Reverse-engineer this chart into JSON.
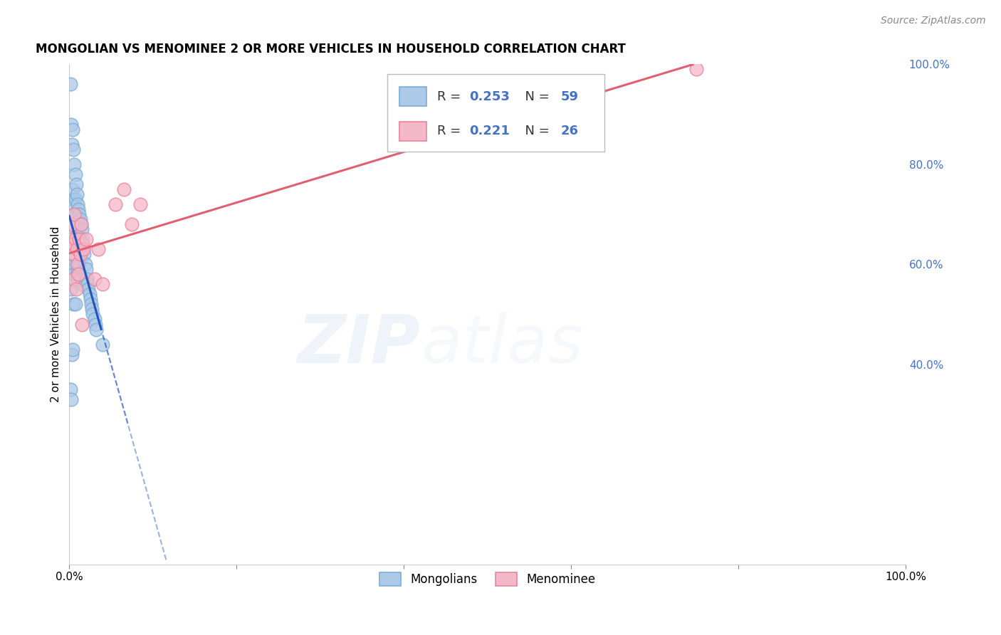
{
  "title": "MONGOLIAN VS MENOMINEE 2 OR MORE VEHICLES IN HOUSEHOLD CORRELATION CHART",
  "source": "Source: ZipAtlas.com",
  "ylabel": "2 or more Vehicles in Household",
  "xlim": [
    0,
    1.0
  ],
  "ylim": [
    0,
    1.0
  ],
  "yticks_right": [
    0.4,
    0.6,
    0.8,
    1.0
  ],
  "ytick_labels_right": [
    "40.0%",
    "60.0%",
    "80.0%",
    "100.0%"
  ],
  "mongolian_color": "#adc9e8",
  "menominee_color": "#f5b8c8",
  "mongolian_edge": "#7aadd4",
  "menominee_edge": "#e8849c",
  "trend_mongolian_color": "#2255bb",
  "trend_menominee_color": "#e06070",
  "legend_R_mongolian": "0.253",
  "legend_N_mongolian": "59",
  "legend_R_menominee": "0.221",
  "legend_N_menominee": "26",
  "mongolian_x": [
    0.001,
    0.001,
    0.002,
    0.002,
    0.002,
    0.003,
    0.003,
    0.003,
    0.004,
    0.004,
    0.004,
    0.004,
    0.005,
    0.005,
    0.005,
    0.005,
    0.006,
    0.006,
    0.006,
    0.007,
    0.007,
    0.007,
    0.007,
    0.008,
    0.008,
    0.008,
    0.009,
    0.009,
    0.009,
    0.01,
    0.01,
    0.01,
    0.011,
    0.011,
    0.012,
    0.012,
    0.013,
    0.013,
    0.014,
    0.014,
    0.015,
    0.015,
    0.016,
    0.017,
    0.018,
    0.019,
    0.02,
    0.021,
    0.022,
    0.023,
    0.024,
    0.025,
    0.026,
    0.027,
    0.028,
    0.03,
    0.031,
    0.032,
    0.04
  ],
  "mongolian_y": [
    0.96,
    0.35,
    0.88,
    0.55,
    0.33,
    0.84,
    0.62,
    0.42,
    0.87,
    0.75,
    0.58,
    0.43,
    0.83,
    0.73,
    0.66,
    0.52,
    0.8,
    0.72,
    0.58,
    0.78,
    0.73,
    0.65,
    0.52,
    0.76,
    0.7,
    0.6,
    0.74,
    0.68,
    0.58,
    0.72,
    0.66,
    0.57,
    0.71,
    0.63,
    0.7,
    0.6,
    0.69,
    0.58,
    0.68,
    0.57,
    0.67,
    0.56,
    0.65,
    0.63,
    0.62,
    0.6,
    0.59,
    0.57,
    0.56,
    0.55,
    0.54,
    0.53,
    0.52,
    0.51,
    0.5,
    0.49,
    0.48,
    0.47,
    0.44
  ],
  "menominee_x": [
    0.002,
    0.003,
    0.004,
    0.005,
    0.006,
    0.006,
    0.007,
    0.008,
    0.009,
    0.01,
    0.011,
    0.012,
    0.013,
    0.014,
    0.015,
    0.016,
    0.017,
    0.02,
    0.03,
    0.035,
    0.04,
    0.055,
    0.065,
    0.075,
    0.085,
    0.75
  ],
  "menominee_y": [
    0.65,
    0.68,
    0.64,
    0.57,
    0.62,
    0.7,
    0.65,
    0.55,
    0.63,
    0.6,
    0.58,
    0.65,
    0.62,
    0.68,
    0.48,
    0.64,
    0.63,
    0.65,
    0.57,
    0.63,
    0.56,
    0.72,
    0.75,
    0.68,
    0.72,
    0.99
  ],
  "watermark_zip": "ZIP",
  "watermark_atlas": "atlas",
  "background_color": "#ffffff",
  "grid_color": "#cccccc",
  "grid_alpha": 0.6
}
